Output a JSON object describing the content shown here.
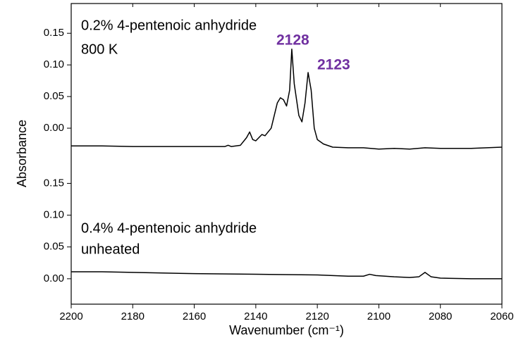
{
  "chart_data": [
    {
      "type": "line",
      "annotations": [
        "0.2%  4-pentenoic anhydride",
        "800 K",
        "2128",
        "2123"
      ],
      "ylabel": "Absorbance",
      "xlim": [
        2200,
        2060
      ],
      "xticks": [
        2200,
        2180,
        2160,
        2140,
        2120,
        2100,
        2080,
        2060
      ],
      "ylim": [
        -0.04,
        0.197
      ],
      "yticks": [
        {
          "value": 0,
          "label": "0.00"
        },
        {
          "value": 0.05,
          "label": "0.05"
        },
        {
          "value": 0.1,
          "label": "0.10"
        },
        {
          "value": 0.15,
          "label": "0.15"
        }
      ],
      "series": [
        {
          "color": "#000000",
          "x": [
            2200,
            2190,
            2180,
            2170,
            2160,
            2150,
            2149,
            2148,
            2145,
            2143,
            2142,
            2141,
            2140,
            2138,
            2137,
            2135,
            2133,
            2132,
            2131,
            2130,
            2129,
            2128.3,
            2127.5,
            2126,
            2125,
            2124,
            2123,
            2122,
            2121,
            2120,
            2118,
            2115,
            2110,
            2105,
            2100,
            2095,
            2090,
            2085,
            2080,
            2070,
            2065,
            2060
          ],
          "values": [
            -0.028,
            -0.028,
            -0.029,
            -0.029,
            -0.029,
            -0.029,
            -0.027,
            -0.029,
            -0.027,
            -0.015,
            -0.006,
            -0.018,
            -0.02,
            -0.01,
            -0.012,
            0.0,
            0.04,
            0.048,
            0.045,
            0.035,
            0.06,
            0.125,
            0.07,
            0.02,
            0.01,
            0.04,
            0.088,
            0.06,
            0.0,
            -0.018,
            -0.025,
            -0.03,
            -0.031,
            -0.031,
            -0.033,
            -0.032,
            -0.033,
            -0.031,
            -0.032,
            -0.032,
            -0.031,
            -0.03
          ]
        }
      ]
    },
    {
      "type": "line",
      "annotations": [
        "0.4%  4-pentenoic anhydride",
        "unheated"
      ],
      "xlabel": "Wavenumber (cm⁻¹)",
      "xlim": [
        2200,
        2060
      ],
      "xticks": [
        2200,
        2180,
        2160,
        2140,
        2120,
        2100,
        2080,
        2060
      ],
      "ylim": [
        -0.04,
        0.197
      ],
      "yticks": [
        {
          "value": 0,
          "label": "0.00"
        },
        {
          "value": 0.05,
          "label": "0.05"
        },
        {
          "value": 0.1,
          "label": "0.10"
        },
        {
          "value": 0.15,
          "label": "0.15"
        }
      ],
      "series": [
        {
          "color": "#000000",
          "x": [
            2200,
            2190,
            2180,
            2160,
            2140,
            2120,
            2110,
            2105,
            2103,
            2101,
            2095,
            2090,
            2087,
            2085,
            2083,
            2080,
            2070,
            2060
          ],
          "values": [
            0.011,
            0.011,
            0.01,
            0.008,
            0.007,
            0.006,
            0.004,
            0.004,
            0.007,
            0.005,
            0.003,
            0.002,
            0.003,
            0.01,
            0.003,
            0.001,
            0.0,
            0.0
          ]
        }
      ]
    }
  ]
}
